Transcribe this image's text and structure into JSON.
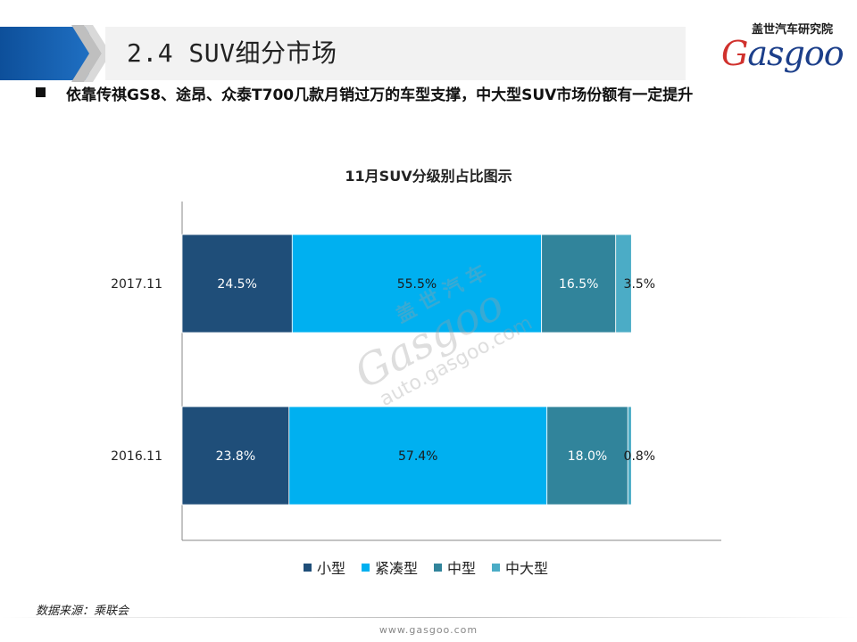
{
  "header": {
    "title": "2.4 SUV细分市场",
    "logo_top": "盖世汽车研究院",
    "logo_word_red": "G",
    "logo_word_blue": "asgoo"
  },
  "subtitle": "依靠传祺GS8、途昂、众泰T700几款月销过万的车型支撑，中大型SUV市场份额有一定提升",
  "chart_data": {
    "type": "bar",
    "orientation": "horizontal",
    "stacked": true,
    "title": "11月SUV分级别占比图示",
    "categories": [
      "2017.11",
      "2016.11"
    ],
    "series": [
      {
        "name": "小型",
        "values": [
          24.5,
          23.8
        ],
        "labels": [
          "24.5%",
          "23.8%"
        ],
        "color": "#1f4e79"
      },
      {
        "name": "紧凑型",
        "values": [
          55.5,
          57.4
        ],
        "labels": [
          "55.5%",
          "57.4%"
        ],
        "color": "#00b0f0"
      },
      {
        "name": "中型",
        "values": [
          16.5,
          18.0
        ],
        "labels": [
          "16.5%",
          "18.0%"
        ],
        "color": "#31849b"
      },
      {
        "name": "中大型",
        "values": [
          3.5,
          0.8
        ],
        "labels": [
          "3.5%",
          "0.8%"
        ],
        "color": "#4bacc6"
      }
    ],
    "xlim": [
      0,
      120
    ],
    "legend_position": "bottom",
    "grid": false
  },
  "watermark": {
    "line1": "盖 世 汽 车",
    "line2": "Gasgoo",
    "line3": "auto.gasgoo.com"
  },
  "source": "数据来源：乘联会",
  "footer": "www.gasgoo.com"
}
